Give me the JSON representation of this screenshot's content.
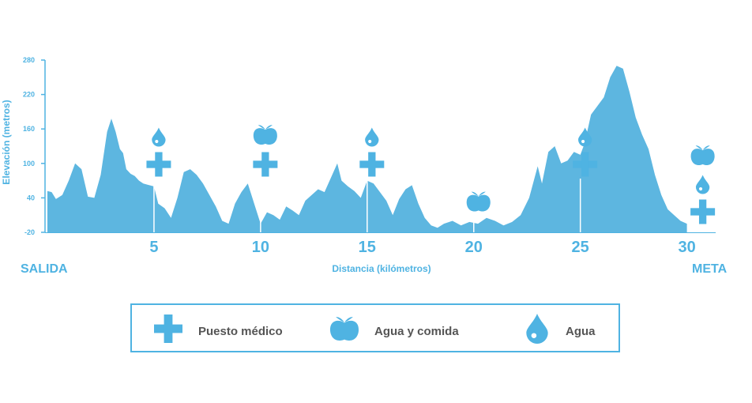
{
  "colors": {
    "accent": "#4fb3e2",
    "fill": "#5db6e0",
    "legend_text": "#555555",
    "background": "#ffffff"
  },
  "chart_data": {
    "type": "area",
    "title": "",
    "xlabel": "Distancia (kilómetros)",
    "ylabel": "Elevación (metros)",
    "ylim": [
      -20,
      280
    ],
    "xlim": [
      0,
      31.2
    ],
    "y_ticks": [
      -20,
      40,
      100,
      160,
      220,
      280
    ],
    "x_ticks": [
      5,
      10,
      15,
      20,
      25,
      30
    ],
    "start_label": "SALIDA",
    "end_label": "META",
    "grid": false,
    "legend_position": "bottom",
    "series": [
      {
        "x": [
          0,
          0.2,
          0.4,
          0.7,
          1.0,
          1.3,
          1.6,
          1.9,
          2.2,
          2.5,
          2.8,
          3.0,
          3.2,
          3.4,
          3.55,
          3.7,
          3.9,
          4.1,
          4.3,
          4.5,
          4.7,
          5.0,
          5.2,
          5.5,
          5.8,
          6.1,
          6.4,
          6.7,
          7.0,
          7.3,
          7.6,
          7.9,
          8.2,
          8.5,
          8.8,
          9.1,
          9.4,
          9.7,
          10.0,
          10.3,
          10.6,
          10.9,
          11.2,
          11.5,
          11.8,
          12.1,
          12.4,
          12.7,
          13.0,
          13.3,
          13.6,
          13.8,
          14.1,
          14.4,
          14.7,
          15.0,
          15.3,
          15.6,
          15.9,
          16.2,
          16.5,
          16.8,
          17.1,
          17.4,
          17.7,
          18.0,
          18.3,
          18.6,
          19.0,
          19.4,
          19.8,
          20.2,
          20.6,
          21.0,
          21.4,
          21.8,
          22.2,
          22.6,
          23.0,
          23.2,
          23.5,
          23.8,
          24.1,
          24.4,
          24.7,
          25.0,
          25.2,
          25.5,
          25.8,
          26.1,
          26.4,
          26.7,
          27.0,
          27.3,
          27.6,
          27.9,
          28.2,
          28.5,
          28.8,
          29.1,
          29.4,
          29.7,
          30.0
        ],
        "y": [
          52,
          50,
          38,
          45,
          70,
          100,
          90,
          42,
          40,
          80,
          155,
          178,
          155,
          125,
          118,
          90,
          82,
          78,
          70,
          65,
          63,
          60,
          30,
          22,
          5,
          40,
          85,
          90,
          80,
          65,
          45,
          25,
          0,
          -5,
          30,
          50,
          65,
          30,
          -5,
          15,
          10,
          2,
          25,
          18,
          10,
          35,
          45,
          55,
          50,
          75,
          100,
          70,
          60,
          52,
          40,
          70,
          65,
          50,
          35,
          10,
          38,
          55,
          62,
          30,
          5,
          -8,
          -12,
          -5,
          0,
          -8,
          -2,
          -5,
          5,
          0,
          -8,
          -2,
          10,
          40,
          95,
          65,
          120,
          130,
          100,
          105,
          120,
          115,
          135,
          185,
          200,
          215,
          250,
          270,
          265,
          225,
          180,
          150,
          125,
          80,
          45,
          20,
          10,
          0,
          -5
        ]
      }
    ],
    "markers": [
      {
        "x": 5,
        "items": [
          "water",
          "medical"
        ]
      },
      {
        "x": 10,
        "items": [
          "food",
          "medical"
        ]
      },
      {
        "x": 15,
        "items": [
          "water",
          "medical"
        ]
      },
      {
        "x": 20,
        "items": [
          "food"
        ]
      },
      {
        "x": 25,
        "items": [
          "water",
          "medical"
        ]
      },
      {
        "x": 30,
        "items": [
          "food",
          "water",
          "medical"
        ]
      }
    ]
  },
  "legend": {
    "items": [
      {
        "icon": "medical",
        "label": "Puesto médico"
      },
      {
        "icon": "food",
        "label": "Agua y comida"
      },
      {
        "icon": "water",
        "label": "Agua"
      }
    ]
  }
}
